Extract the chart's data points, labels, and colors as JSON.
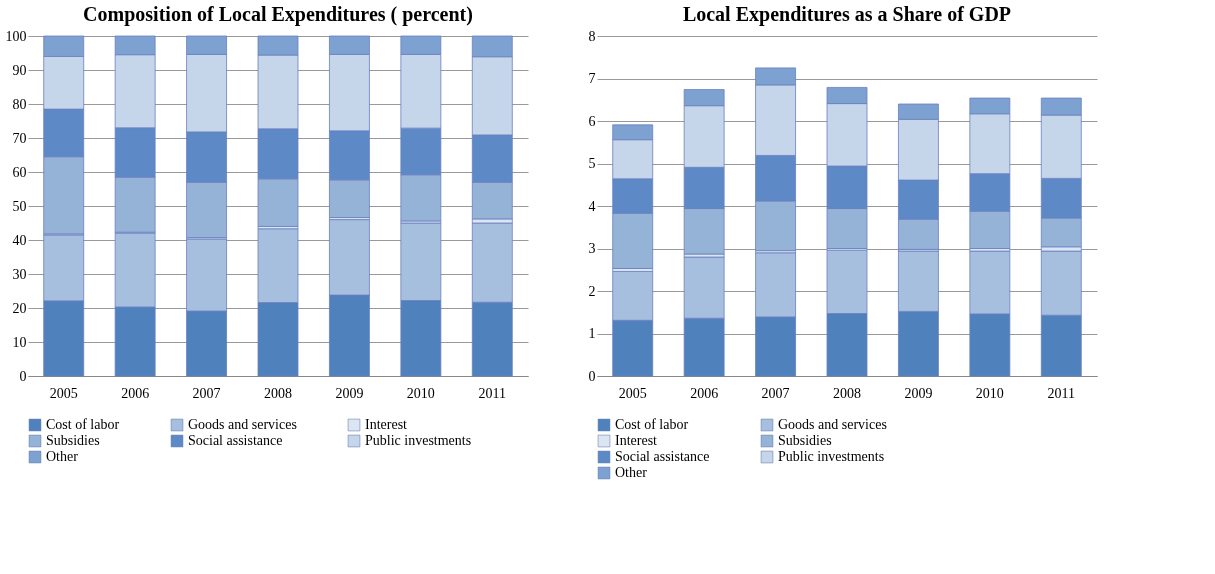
{
  "chart_data": [
    {
      "type": "bar",
      "title": "Composition of Local Expenditures ( percent)",
      "categories": [
        "2005",
        "2006",
        "2007",
        "2008",
        "2009",
        "2010",
        "2011"
      ],
      "stacked": true,
      "ylim": [
        0,
        100
      ],
      "yticks": [
        0,
        10,
        20,
        30,
        40,
        50,
        60,
        70,
        80,
        90,
        100
      ],
      "grid": "y",
      "legend": "bottom",
      "series": [
        {
          "name": "Cost of labor",
          "color": "#4f81bd",
          "values": [
            22.1,
            20.3,
            19.1,
            21.6,
            23.8,
            22.2,
            21.7
          ]
        },
        {
          "name": "Goods and services",
          "color": "#a7bfde",
          "values": [
            19.4,
            21.7,
            21.2,
            21.7,
            22.2,
            22.8,
            23.3
          ]
        },
        {
          "name": "Interest",
          "color": "#dce6f2",
          "values": [
            0.3,
            0.3,
            0.4,
            0.7,
            0.6,
            0.6,
            1.2
          ]
        },
        {
          "name": "Subsidies",
          "color": "#95b3d7",
          "values": [
            22.7,
            16.2,
            16.3,
            14,
            11.1,
            13.6,
            10.8
          ]
        },
        {
          "name": "Social assistance",
          "color": "#5d8ac7",
          "values": [
            14,
            14.5,
            14.8,
            14.7,
            14.4,
            13.7,
            13.9
          ]
        },
        {
          "name": "Public investments",
          "color": "#c5d5ea",
          "values": [
            15.5,
            21.5,
            22.8,
            21.7,
            22.5,
            21.7,
            23
          ]
        },
        {
          "name": "Other",
          "color": "#7da2d2",
          "values": [
            6,
            5.5,
            5.4,
            5.6,
            5.4,
            5.4,
            6.1
          ]
        }
      ]
    },
    {
      "type": "bar",
      "title": "Local Expenditures as a Share of GDP",
      "categories": [
        "2005",
        "2006",
        "2007",
        "2008",
        "2009",
        "2010",
        "2011"
      ],
      "stacked": true,
      "ylim": [
        0,
        8
      ],
      "yticks": [
        0,
        1,
        2,
        3,
        4,
        5,
        6,
        7,
        8
      ],
      "grid": "y",
      "legend": "bottom",
      "series": [
        {
          "name": "Cost of labor",
          "color": "#4f81bd",
          "values": [
            1.31,
            1.36,
            1.39,
            1.47,
            1.52,
            1.46,
            1.43
          ]
        },
        {
          "name": "Goods and services",
          "color": "#a7bfde",
          "values": [
            1.15,
            1.44,
            1.51,
            1.49,
            1.42,
            1.48,
            1.51
          ]
        },
        {
          "name": "Interest",
          "color": "#dce6f2",
          "values": [
            0.07,
            0.07,
            0.05,
            0.04,
            0.04,
            0.06,
            0.1
          ]
        },
        {
          "name": "Subsidies",
          "color": "#95b3d7",
          "values": [
            1.3,
            1.07,
            1.17,
            0.94,
            0.71,
            0.88,
            0.68
          ]
        },
        {
          "name": "Social assistance",
          "color": "#5d8ac7",
          "values": [
            0.81,
            0.97,
            1.07,
            1.0,
            0.92,
            0.88,
            0.93
          ]
        },
        {
          "name": "Public investments",
          "color": "#c5d5ea",
          "values": [
            0.92,
            1.45,
            1.66,
            1.47,
            1.43,
            1.41,
            1.49
          ]
        },
        {
          "name": "Other",
          "color": "#7da2d2",
          "values": [
            0.35,
            0.38,
            0.4,
            0.38,
            0.36,
            0.37,
            0.4
          ]
        }
      ]
    }
  ]
}
